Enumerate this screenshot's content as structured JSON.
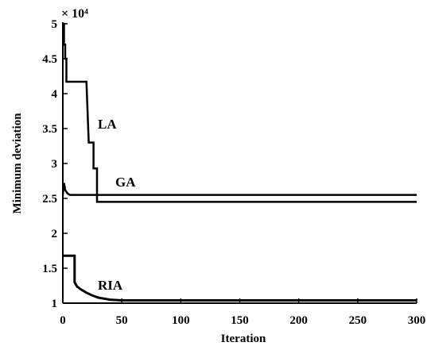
{
  "chart_data": {
    "type": "line",
    "title": "",
    "xlabel": "Iteration",
    "ylabel": "Minimum deviation",
    "y_multiplier": "× 10⁴",
    "xlim": [
      0,
      300
    ],
    "ylim": [
      1,
      5
    ],
    "grid": false,
    "xticks": [
      0,
      50,
      100,
      150,
      200,
      250,
      300
    ],
    "yticks": [
      1,
      1.5,
      2,
      2.5,
      3,
      3.5,
      4,
      4.5,
      5
    ],
    "ytick_labels": [
      "1",
      "1.5",
      "2",
      "2.5",
      "3",
      "3.5",
      "4",
      "4.5",
      "5"
    ],
    "series": [
      {
        "name": "LA",
        "x": [
          0,
          1,
          1,
          2,
          2,
          3,
          3,
          20,
          22,
          26,
          26,
          29,
          29,
          300
        ],
        "y": [
          5.0,
          5.0,
          4.7,
          4.7,
          4.5,
          4.5,
          4.17,
          4.17,
          3.3,
          3.3,
          2.93,
          2.93,
          2.45,
          2.45
        ]
      },
      {
        "name": "GA",
        "x": [
          0,
          1,
          2,
          4,
          6,
          10,
          300
        ],
        "y": [
          2.55,
          2.72,
          2.62,
          2.57,
          2.55,
          2.55,
          2.55
        ]
      },
      {
        "name": "RIA",
        "x": [
          0,
          1,
          1,
          10,
          10,
          12,
          15,
          20,
          25,
          30,
          40,
          50,
          300
        ],
        "y": [
          1.68,
          1.68,
          1.68,
          1.68,
          1.3,
          1.24,
          1.2,
          1.15,
          1.11,
          1.08,
          1.05,
          1.04,
          1.04
        ]
      }
    ]
  }
}
